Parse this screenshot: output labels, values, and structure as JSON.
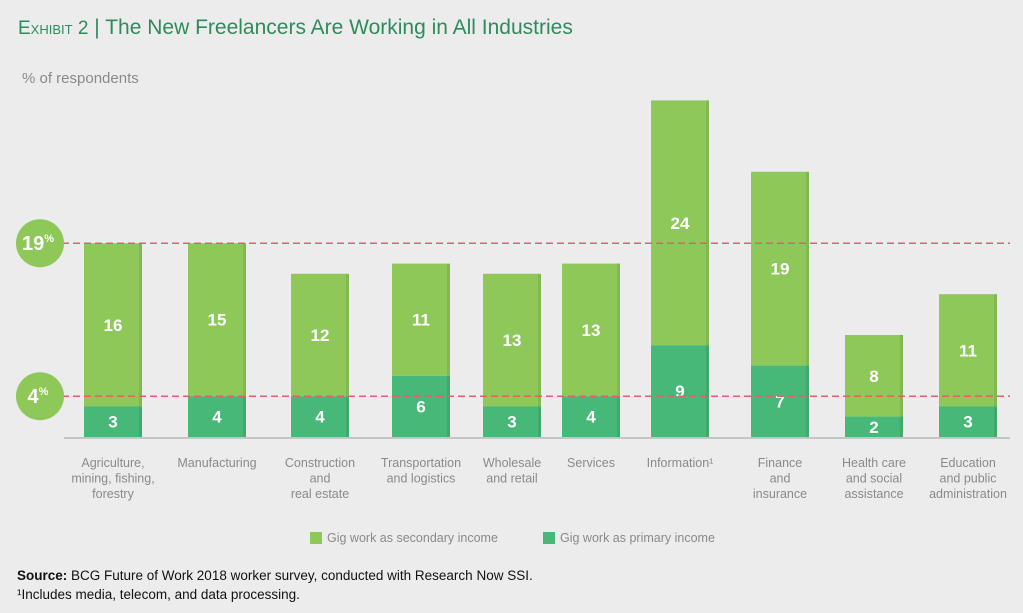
{
  "header": {
    "exhibit": "Exhibit 2",
    "separator": "|",
    "title": "The New Freelancers Are Working in All Industries"
  },
  "chart_data": {
    "type": "bar",
    "stacked": true,
    "ylabel": "% of respondents",
    "categories": [
      [
        "Agriculture,",
        "mining, fishing,",
        "forestry"
      ],
      [
        "Manufacturing"
      ],
      [
        "Construction",
        "and",
        "real estate"
      ],
      [
        "Transportation",
        "and logistics"
      ],
      [
        "Wholesale",
        "and retail"
      ],
      [
        "Services"
      ],
      [
        "Information¹"
      ],
      [
        "Finance",
        "and",
        "insurance"
      ],
      [
        "Health care",
        "and social",
        "assistance"
      ],
      [
        "Education",
        "and public",
        "administration"
      ]
    ],
    "series": [
      {
        "name": "Gig work as primary income",
        "color": "#47b877",
        "values": [
          3,
          4,
          4,
          6,
          3,
          4,
          9,
          7,
          2,
          3
        ]
      },
      {
        "name": "Gig work as secondary income",
        "color": "#8dc859",
        "values": [
          16,
          15,
          12,
          11,
          13,
          13,
          24,
          19,
          8,
          11
        ]
      }
    ],
    "reference_lines": [
      {
        "value": 19,
        "label": "19",
        "suffix": "%",
        "color": "#e06070"
      },
      {
        "value": 4,
        "label": "4",
        "suffix": "%",
        "color": "#e06070"
      }
    ],
    "ylim": [
      0,
      34
    ],
    "legend_position": "bottom",
    "grid": false
  },
  "legend": [
    {
      "label": "Gig work as secondary income",
      "color": "#8dc859"
    },
    {
      "label": "Gig work as primary income",
      "color": "#47b877"
    }
  ],
  "footer": {
    "source_label": "Source:",
    "source_text": " BCG Future of Work 2018 worker survey, conducted with Research Now SSI.",
    "footnote": "¹Includes media, telecom, and data processing."
  }
}
